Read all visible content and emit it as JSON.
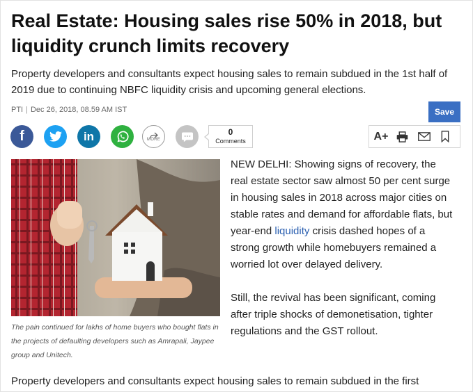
{
  "article": {
    "headline": "Real Estate: Housing sales rise 50% in 2018, but liquidity crunch limits recovery",
    "summary": "Property developers and consultants expect housing sales to remain subdued in the 1st half of 2019 due to continuing NBFC liquidity crisis and upcoming general elections.",
    "source": "PTI",
    "separator": "|",
    "date": "Dec 26, 2018, 08.59 AM IST",
    "image_caption": "The pain continued for lakhs of home buyers who bought flats in the projects of defaulting developers such as Amrapali, Jaypee group and Unitech.",
    "body": {
      "p1_before_link": "NEW DELHI: Showing signs of recovery, the real estate sector saw almost 50 per cent surge in housing sales in 2018 across major cities on stable rates and demand for affordable flats, but year-end ",
      "p1_link": "liquidity",
      "p1_after_link": " crisis dashed hopes of a strong growth while homebuyers remained a worried lot over delayed delivery.",
      "p2": "Still, the revival has been significant, coming after triple shocks of demonetisation, tighter regulations and the GST rollout.",
      "p3": "Property developers and consultants expect housing sales to remain subdued in the first"
    }
  },
  "share": {
    "facebook_glyph": "f",
    "linkedin_glyph": "in",
    "more_label": "MORE",
    "comment_count": "0",
    "comment_label": "Comments"
  },
  "tools": {
    "save_label": "Save",
    "font_size_label": "A+"
  },
  "colors": {
    "facebook": "#3b5998",
    "twitter": "#1da1f2",
    "linkedin": "#0e76a8",
    "whatsapp": "#2fb140",
    "save_button": "#3a6fc3",
    "link": "#2a5fb0"
  },
  "icons": [
    "facebook-icon",
    "twitter-icon",
    "linkedin-icon",
    "whatsapp-icon",
    "more-share-icon",
    "comment-icon",
    "print-icon",
    "email-icon",
    "bookmark-icon"
  ]
}
